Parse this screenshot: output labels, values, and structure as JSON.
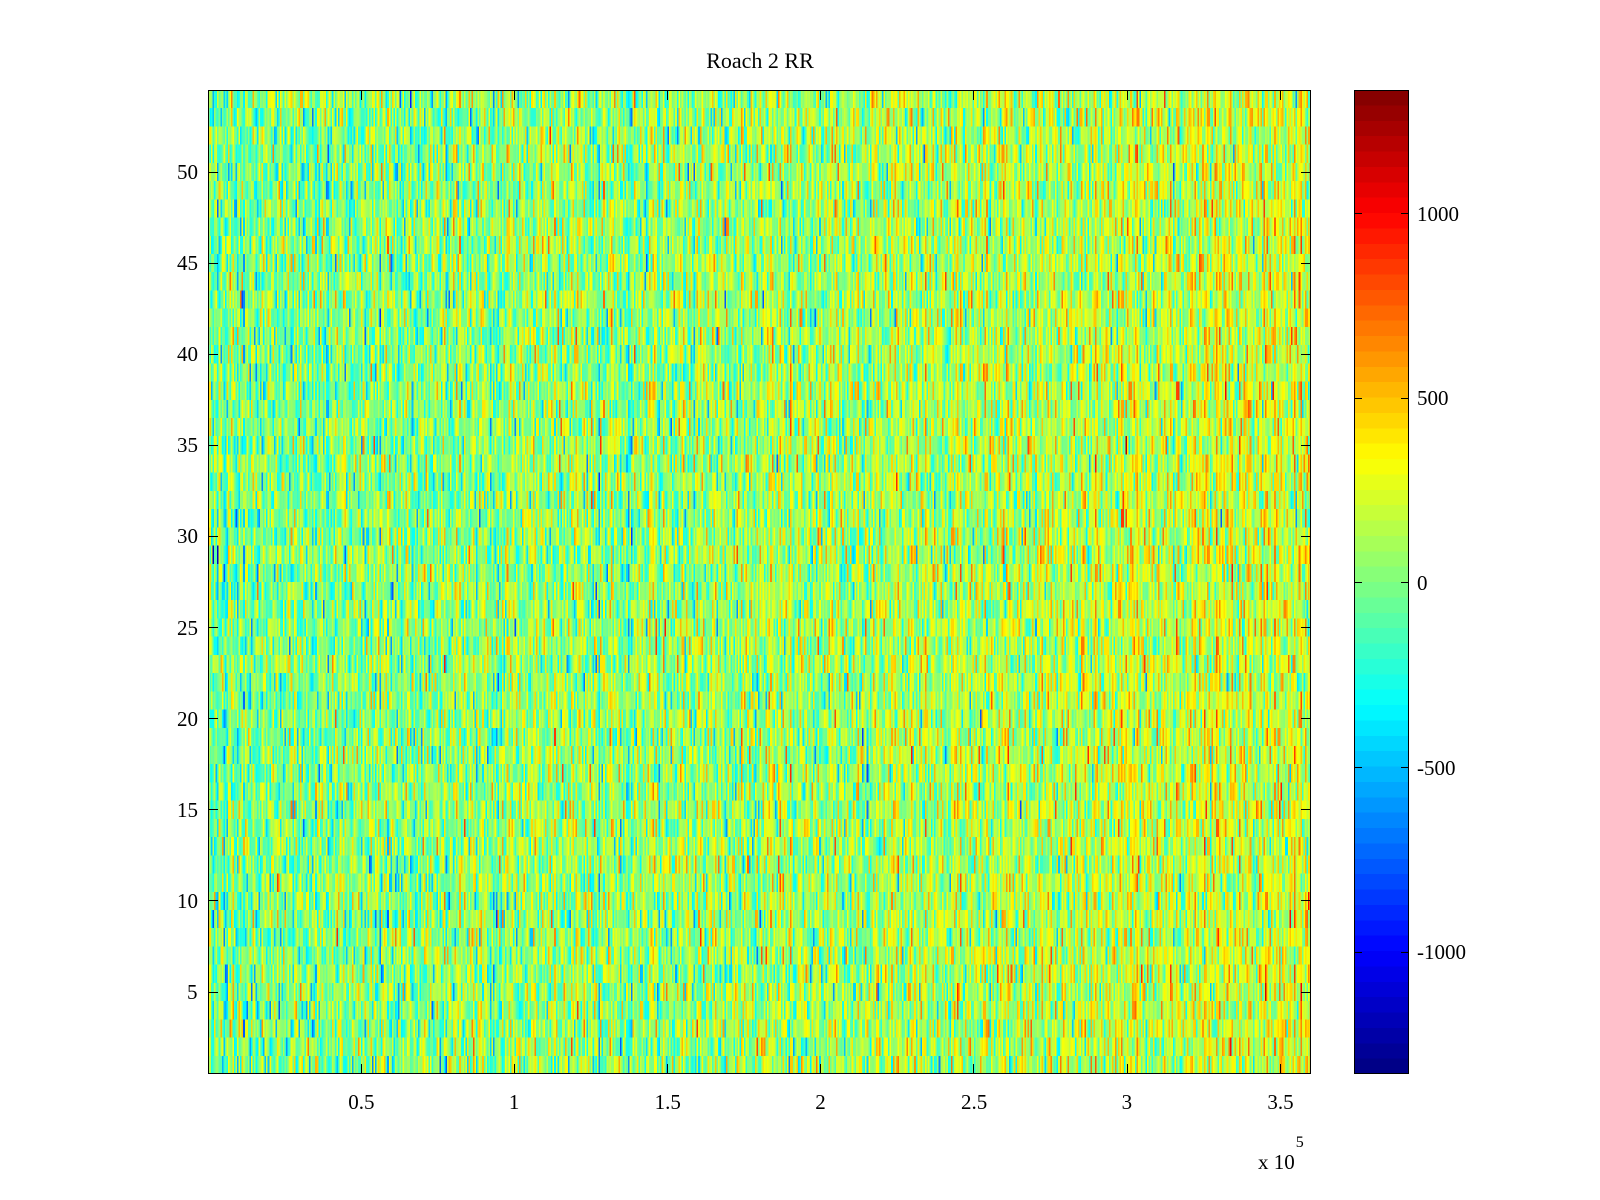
{
  "chart_data": {
    "type": "heatmap",
    "title": "Roach 2 RR",
    "xlabel": "",
    "ylabel": "",
    "x_exponent_label": "x 10",
    "x_exponent": "5",
    "xlim": [
      0,
      360000
    ],
    "ylim": [
      0.5,
      54.5
    ],
    "rows": 54,
    "columns": 720,
    "x_ticks": [
      {
        "value": 50000,
        "label": "0.5"
      },
      {
        "value": 100000,
        "label": "1"
      },
      {
        "value": 150000,
        "label": "1.5"
      },
      {
        "value": 200000,
        "label": "2"
      },
      {
        "value": 250000,
        "label": "2.5"
      },
      {
        "value": 300000,
        "label": "3"
      },
      {
        "value": 350000,
        "label": "3.5"
      }
    ],
    "y_ticks": [
      {
        "value": 5,
        "label": "5"
      },
      {
        "value": 10,
        "label": "10"
      },
      {
        "value": 15,
        "label": "15"
      },
      {
        "value": 20,
        "label": "20"
      },
      {
        "value": 25,
        "label": "25"
      },
      {
        "value": 30,
        "label": "30"
      },
      {
        "value": 35,
        "label": "35"
      },
      {
        "value": 40,
        "label": "40"
      },
      {
        "value": 45,
        "label": "45"
      },
      {
        "value": 50,
        "label": "50"
      }
    ],
    "colorbar": {
      "colormap": "jet",
      "levels": 64,
      "clim": [
        -1330,
        1335
      ],
      "ticks": [
        {
          "value": -1000,
          "label": "-1000"
        },
        {
          "value": -500,
          "label": "-500"
        },
        {
          "value": 0,
          "label": "0"
        },
        {
          "value": 500,
          "label": "500"
        },
        {
          "value": 1000,
          "label": "1000"
        }
      ]
    },
    "value_distribution": {
      "mean_at_xmin": -30,
      "mean_at_xmax": 200,
      "std": 260,
      "description_note": "noisy values, warmer toward larger x"
    },
    "grid": false
  }
}
